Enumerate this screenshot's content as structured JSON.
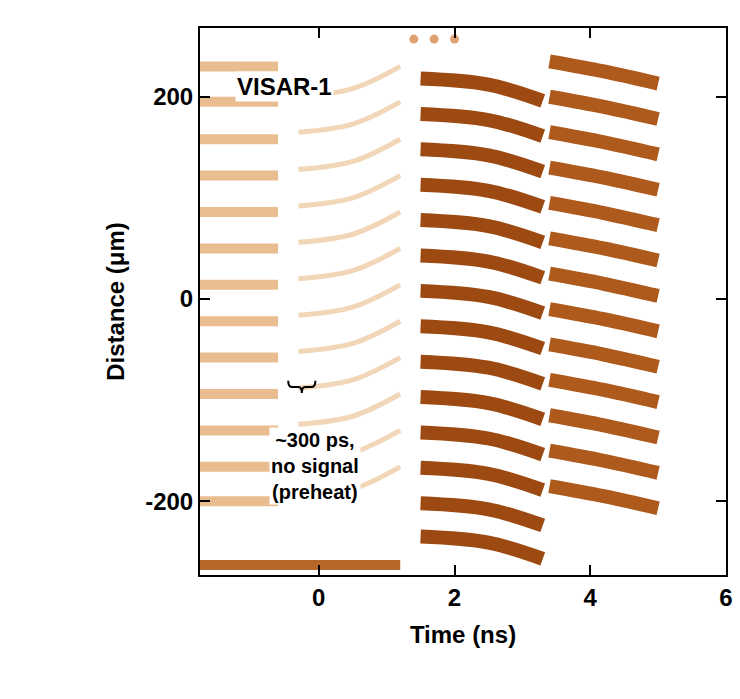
{
  "chart_data": {
    "type": "streak",
    "xlabel": "Time (ns)",
    "ylabel": "Distance (μm)",
    "xlim": [
      -1.75,
      6
    ],
    "ylim": [
      -273,
      268
    ],
    "xticks": [
      0,
      2,
      4,
      6
    ],
    "yticks": [
      -200,
      0,
      200
    ],
    "grid": false,
    "fringes": [
      {
        "color": "#e9bd8f",
        "line_style": "medium",
        "x": [
          -1.75,
          -1.2,
          -0.6
        ],
        "lines": [
          [
            230,
            230,
            230
          ],
          [
            195,
            195,
            195
          ],
          [
            158,
            158,
            158
          ],
          [
            122,
            122,
            122
          ],
          [
            86,
            86,
            86
          ],
          [
            50,
            50,
            50
          ],
          [
            14,
            14,
            14
          ],
          [
            -22,
            -22,
            -22
          ],
          [
            -58,
            -58,
            -58
          ],
          [
            -94,
            -94,
            -94
          ],
          [
            -130,
            -130,
            -130
          ],
          [
            -166,
            -166,
            -166
          ],
          [
            -200,
            -200,
            -200
          ]
        ]
      },
      {
        "color": "#f1d6b8",
        "line_style": "thin",
        "x": [
          -0.3,
          0.5,
          1.2
        ],
        "lines": [
          [
            200,
            208,
            230
          ],
          [
            165,
            173,
            195
          ],
          [
            128,
            136,
            158
          ],
          [
            92,
            100,
            122
          ],
          [
            56,
            64,
            86
          ],
          [
            20,
            28,
            50
          ],
          [
            -16,
            -8,
            14
          ],
          [
            -52,
            -44,
            -22
          ],
          [
            -88,
            -80,
            -58
          ],
          [
            -124,
            -116,
            -94
          ],
          [
            -160,
            -152,
            -130
          ],
          [
            -196,
            -188,
            -166
          ]
        ]
      },
      {
        "color": "#9c4a12",
        "line_style": "heavy",
        "x": [
          1.5,
          2.5,
          3.3
        ],
        "lines": [
          [
            218,
            212,
            196
          ],
          [
            183,
            177,
            161
          ],
          [
            148,
            142,
            126
          ],
          [
            113,
            107,
            91
          ],
          [
            78,
            72,
            56
          ],
          [
            43,
            37,
            21
          ],
          [
            8,
            2,
            -14
          ],
          [
            -27,
            -33,
            -49
          ],
          [
            -62,
            -68,
            -84
          ],
          [
            -97,
            -103,
            -119
          ],
          [
            -132,
            -138,
            -154
          ],
          [
            -167,
            -173,
            -189
          ],
          [
            -202,
            -208,
            -224
          ],
          [
            -235,
            -241,
            -257
          ]
        ]
      },
      {
        "color": "#ad5a1c",
        "line_style": "heavy",
        "x": [
          3.4,
          4.2,
          5.0
        ],
        "lines": [
          [
            235,
            225,
            213
          ],
          [
            200,
            190,
            178
          ],
          [
            165,
            155,
            143
          ],
          [
            130,
            120,
            108
          ],
          [
            95,
            85,
            73
          ],
          [
            60,
            50,
            38
          ],
          [
            25,
            15,
            3
          ],
          [
            -10,
            -20,
            -32
          ],
          [
            -45,
            -55,
            -67
          ],
          [
            -80,
            -90,
            -102
          ],
          [
            -115,
            -125,
            -137
          ],
          [
            -150,
            -160,
            -172
          ],
          [
            -185,
            -195,
            -207
          ]
        ]
      },
      {
        "color": "#b8672a",
        "line_style": "medium",
        "x": [
          -1.75,
          -0.3,
          1.2
        ],
        "lines": [
          [
            -263,
            -263,
            -263
          ]
        ]
      }
    ],
    "dots": {
      "color": "#e0a070",
      "x": [
        1.4,
        1.7,
        2.0
      ],
      "y": [
        257,
        257,
        257
      ]
    },
    "annotations": [
      {
        "text": [
          "VISAR-1"
        ],
        "x": -0.5,
        "y": 210
      },
      {
        "text": [
          "~300 ps,",
          "no signal",
          "(preheat)"
        ],
        "x": -0.05,
        "y": -165
      }
    ]
  }
}
